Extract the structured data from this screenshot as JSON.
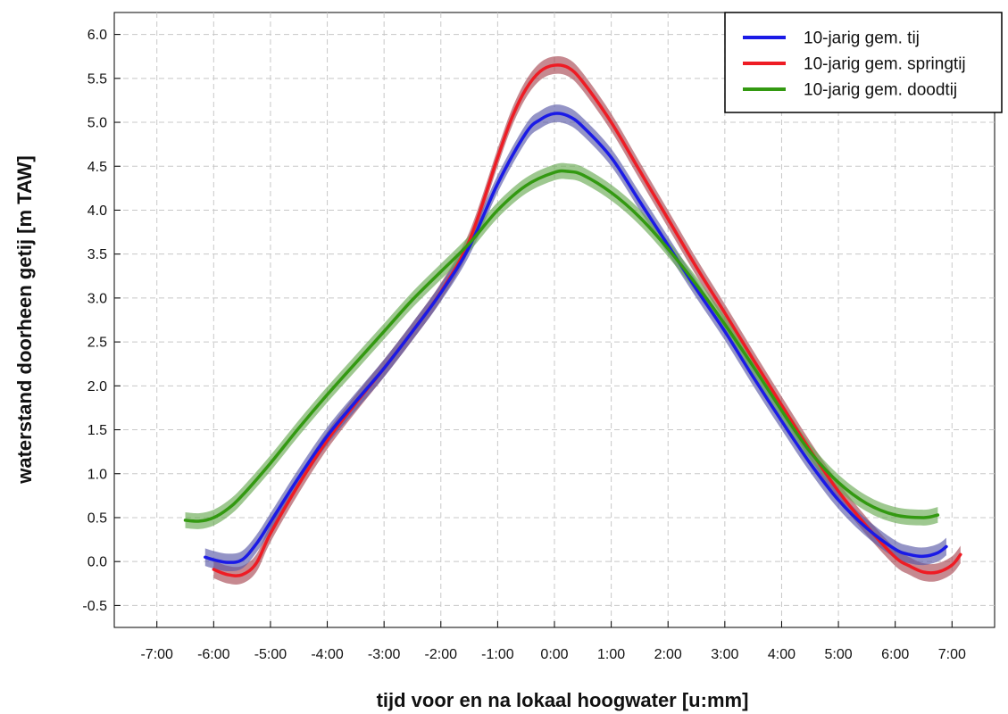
{
  "chart_data": {
    "type": "line",
    "xlabel": "tijd voor en na lokaal hoogwater [u:mm]",
    "ylabel": "waterstand doorheen getij [m TAW]",
    "xlim": [
      -7.75,
      7.75
    ],
    "ylim": [
      -0.75,
      6.25
    ],
    "x_ticks": [
      {
        "value": -7,
        "label": "-7:00"
      },
      {
        "value": -6,
        "label": "-6:00"
      },
      {
        "value": -5,
        "label": "-5:00"
      },
      {
        "value": -4,
        "label": "-4:00"
      },
      {
        "value": -3,
        "label": "-3:00"
      },
      {
        "value": -2,
        "label": "-2:00"
      },
      {
        "value": -1,
        "label": "-1:00"
      },
      {
        "value": 0,
        "label": "0:00"
      },
      {
        "value": 1,
        "label": "1:00"
      },
      {
        "value": 2,
        "label": "2:00"
      },
      {
        "value": 3,
        "label": "3:00"
      },
      {
        "value": 4,
        "label": "4:00"
      },
      {
        "value": 5,
        "label": "5:00"
      },
      {
        "value": 6,
        "label": "6:00"
      },
      {
        "value": 7,
        "label": "7:00"
      }
    ],
    "y_ticks": [
      {
        "value": -0.5,
        "label": "-0.5"
      },
      {
        "value": 0.0,
        "label": "0.0"
      },
      {
        "value": 0.5,
        "label": "0.5"
      },
      {
        "value": 1.0,
        "label": "1.0"
      },
      {
        "value": 1.5,
        "label": "1.5"
      },
      {
        "value": 2.0,
        "label": "2.0"
      },
      {
        "value": 2.5,
        "label": "2.5"
      },
      {
        "value": 3.0,
        "label": "3.0"
      },
      {
        "value": 3.5,
        "label": "3.5"
      },
      {
        "value": 4.0,
        "label": "4.0"
      },
      {
        "value": 4.5,
        "label": "4.5"
      },
      {
        "value": 5.0,
        "label": "5.0"
      },
      {
        "value": 5.5,
        "label": "5.5"
      },
      {
        "value": 6.0,
        "label": "6.0"
      }
    ],
    "grid": true,
    "legend_position": "top-right",
    "series": [
      {
        "name": "10-jarig gem. springtij",
        "color": "#ee1c24",
        "band_color": "#a84a55",
        "band_half_width": 0.1,
        "x": [
          -6.0,
          -5.75,
          -5.5,
          -5.25,
          -5.0,
          -4.5,
          -4.0,
          -3.5,
          -3.0,
          -2.5,
          -2.0,
          -1.5,
          -1.0,
          -0.75,
          -0.5,
          -0.25,
          0.0,
          0.25,
          0.5,
          1.0,
          1.5,
          2.0,
          2.5,
          3.0,
          3.5,
          4.0,
          4.5,
          5.0,
          5.5,
          6.0,
          6.25,
          6.5,
          6.75,
          7.0,
          7.15
        ],
        "y": [
          -0.09,
          -0.15,
          -0.15,
          -0.02,
          0.32,
          0.88,
          1.38,
          1.8,
          2.2,
          2.62,
          3.07,
          3.65,
          4.6,
          5.05,
          5.38,
          5.58,
          5.65,
          5.62,
          5.46,
          5.0,
          4.45,
          3.9,
          3.35,
          2.83,
          2.3,
          1.78,
          1.27,
          0.8,
          0.4,
          0.05,
          -0.05,
          -0.12,
          -0.12,
          -0.04,
          0.08
        ]
      },
      {
        "name": "10-jarig gem. tij",
        "color": "#1a1ae6",
        "band_color": "#5a5aa8",
        "band_half_width": 0.1,
        "x": [
          -6.15,
          -6.0,
          -5.75,
          -5.5,
          -5.25,
          -5.0,
          -4.5,
          -4.0,
          -3.5,
          -3.0,
          -2.5,
          -2.0,
          -1.5,
          -1.0,
          -0.5,
          -0.25,
          0.0,
          0.25,
          0.5,
          1.0,
          1.5,
          2.0,
          2.5,
          3.0,
          3.5,
          4.0,
          4.5,
          5.0,
          5.5,
          6.0,
          6.25,
          6.5,
          6.75,
          6.9
        ],
        "y": [
          0.05,
          0.02,
          -0.01,
          0.02,
          0.2,
          0.45,
          0.96,
          1.43,
          1.82,
          2.2,
          2.62,
          3.06,
          3.58,
          4.3,
          4.88,
          5.03,
          5.1,
          5.07,
          4.95,
          4.6,
          4.1,
          3.6,
          3.1,
          2.62,
          2.1,
          1.6,
          1.12,
          0.7,
          0.38,
          0.14,
          0.08,
          0.06,
          0.1,
          0.17
        ]
      },
      {
        "name": "10-jarig gem. doodtij",
        "color": "#339911",
        "band_color": "#6aaa55",
        "band_half_width": 0.09,
        "x": [
          -6.5,
          -6.25,
          -6.0,
          -5.75,
          -5.5,
          -5.0,
          -4.5,
          -4.0,
          -3.5,
          -3.0,
          -2.5,
          -2.0,
          -1.5,
          -1.0,
          -0.5,
          0.0,
          0.25,
          0.5,
          1.0,
          1.5,
          2.0,
          2.5,
          3.0,
          3.5,
          4.0,
          4.5,
          5.0,
          5.5,
          6.0,
          6.5,
          6.75
        ],
        "y": [
          0.47,
          0.46,
          0.5,
          0.6,
          0.75,
          1.12,
          1.52,
          1.9,
          2.26,
          2.62,
          2.98,
          3.3,
          3.62,
          4.0,
          4.28,
          4.43,
          4.44,
          4.4,
          4.2,
          3.92,
          3.56,
          3.15,
          2.7,
          2.22,
          1.72,
          1.25,
          0.9,
          0.66,
          0.53,
          0.5,
          0.53
        ]
      }
    ],
    "legend_order": [
      "10-jarig gem. tij",
      "10-jarig gem. springtij",
      "10-jarig gem. doodtij"
    ]
  }
}
